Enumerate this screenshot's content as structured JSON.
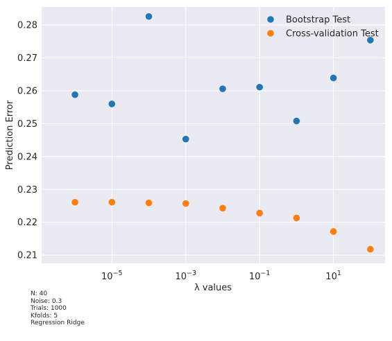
{
  "chart_data": {
    "type": "scatter",
    "xlabel": "λ values",
    "ylabel": "Prediction Error",
    "xscale": "log",
    "xlim": [
      1.25e-07,
      250
    ],
    "ylim": [
      0.2075,
      0.2855
    ],
    "grid": true,
    "legend_position": "top-right",
    "x_ticks": [
      {
        "value": 1e-05,
        "base": "10",
        "exp": "−5"
      },
      {
        "value": 0.001,
        "base": "10",
        "exp": "−3"
      },
      {
        "value": 0.1,
        "base": "10",
        "exp": "−1"
      },
      {
        "value": 10,
        "base": "10",
        "exp": "1"
      }
    ],
    "y_ticks": [
      {
        "value": 0.21,
        "label": "0.21"
      },
      {
        "value": 0.22,
        "label": "0.22"
      },
      {
        "value": 0.23,
        "label": "0.23"
      },
      {
        "value": 0.24,
        "label": "0.24"
      },
      {
        "value": 0.25,
        "label": "0.25"
      },
      {
        "value": 0.26,
        "label": "0.26"
      },
      {
        "value": 0.27,
        "label": "0.27"
      },
      {
        "value": 0.28,
        "label": "0.28"
      }
    ],
    "x": [
      1e-06,
      1e-05,
      0.0001,
      0.001,
      0.01,
      0.1,
      1,
      10,
      100
    ],
    "series": [
      {
        "name": "Bootstrap Test",
        "color": "#1f77b4",
        "values": [
          0.2588,
          0.256,
          0.2826,
          0.2453,
          0.2606,
          0.2611,
          0.2508,
          0.2639,
          0.2754
        ]
      },
      {
        "name": "Cross-validation Test",
        "color": "#ff7f0e",
        "values": [
          0.2261,
          0.2261,
          0.2259,
          0.2257,
          0.2243,
          0.2228,
          0.2213,
          0.2172,
          0.2118
        ]
      }
    ]
  },
  "footnote": {
    "lines": [
      "N: 40",
      "Noise: 0.3",
      "Trials: 1000",
      "Kfolds: 5",
      "Regression Ridge"
    ]
  }
}
